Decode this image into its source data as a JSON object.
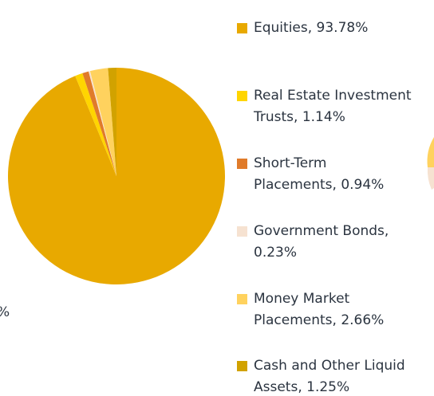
{
  "chart_data": {
    "type": "pie",
    "legend_labels": [
      [
        "Equities, 93.78%"
      ],
      [
        "Real Estate Investment",
        "Trusts, 1.14%"
      ],
      [
        "Short-Term",
        "Placements, 0.94%"
      ],
      [
        "Government Bonds,",
        "0.23%"
      ],
      [
        "Money Market",
        "Placements, 2.66%"
      ],
      [
        "Cash and Other Liquid",
        "Assets, 1.25%"
      ]
    ],
    "values": [
      93.78,
      1.14,
      0.94,
      0.23,
      2.66,
      1.25
    ],
    "colors": [
      "#e8a900",
      "#ffd500",
      "#e07b2a",
      "#f6e2d1",
      "#ffd25e",
      "#d1a200"
    ],
    "start_angle": 0,
    "direction": "clockwise",
    "annotations": [
      "%"
    ]
  }
}
